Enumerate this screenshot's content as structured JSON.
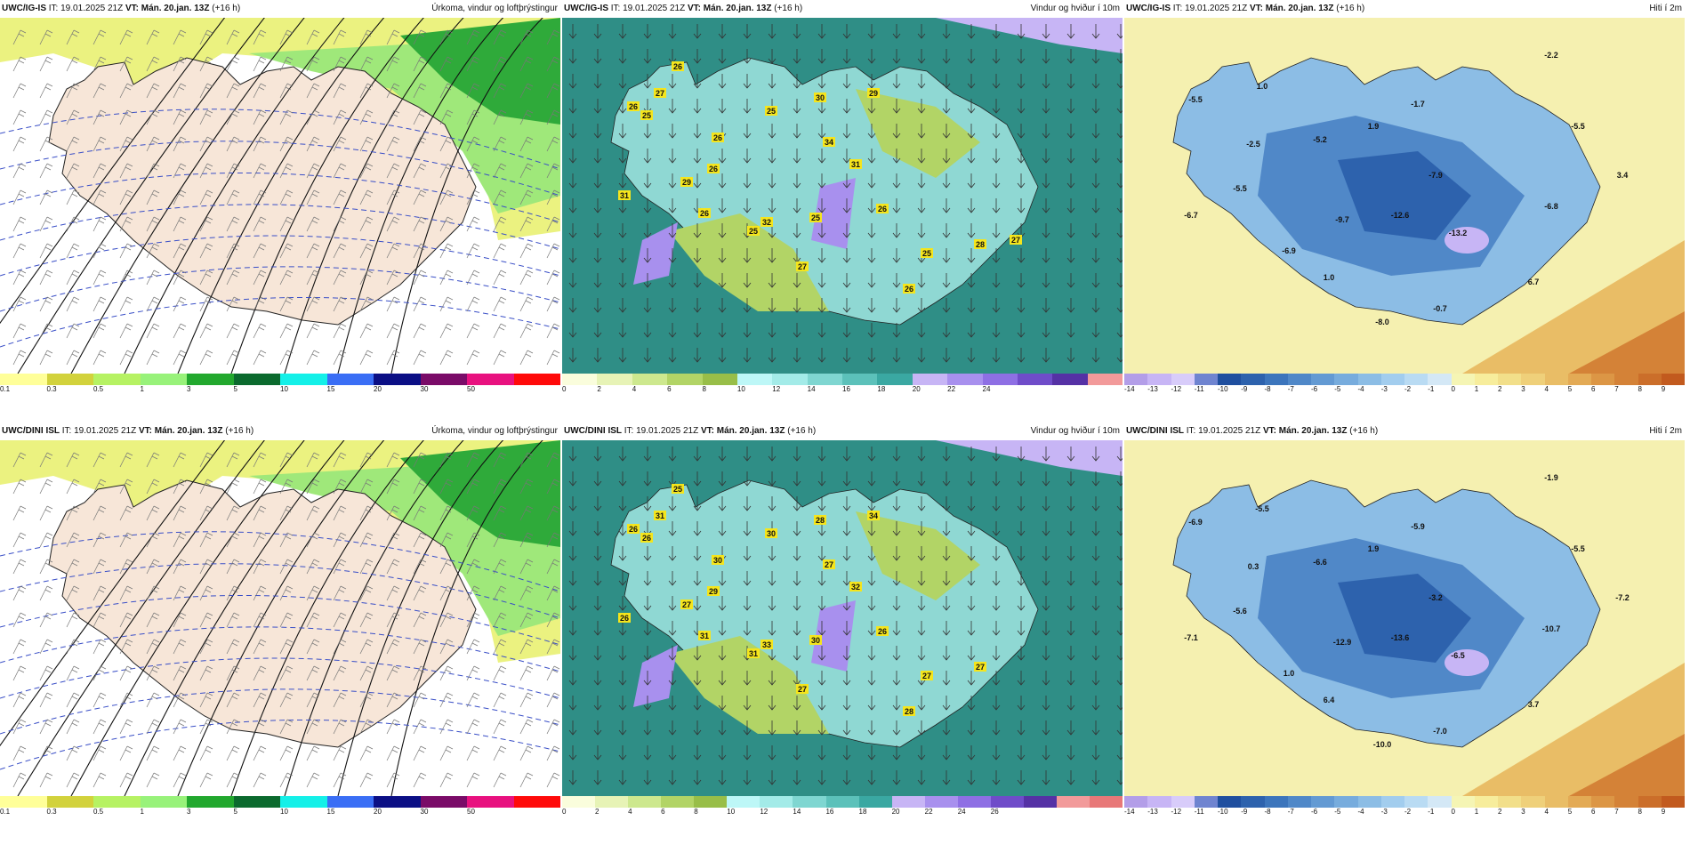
{
  "panels": [
    {
      "id": "r1c1",
      "model": "UWC/IG-IS",
      "it": "IT: 19.01.2025 21Z",
      "vt_label": "VT:",
      "vt": "Mán. 20.jan. 13Z",
      "offset": "(+16 h)",
      "title": "Úrkoma, vindur og loftþrýstingur",
      "type": "precip",
      "scale": {
        "colors": [
          "#ffff99",
          "#d2d23c",
          "#b6f263",
          "#98f27a",
          "#22a82e",
          "#0b6a2e",
          "#14f0e8",
          "#3a6ef5",
          "#0b0f85",
          "#7a0b68",
          "#e8117f",
          "#ff0a0a"
        ],
        "labels": [
          "0.1",
          "0.3",
          "0.5",
          "1",
          "3",
          "5",
          "10",
          "15",
          "20",
          "30",
          "50"
        ]
      },
      "labels": []
    },
    {
      "id": "r1c2",
      "model": "UWC/IG-IS",
      "it": "IT: 19.01.2025 21Z",
      "vt_label": "VT:",
      "vt": "Mán. 20.jan. 13Z",
      "offset": "(+16 h)",
      "title": "Vindur og hviður í 10m",
      "type": "wind",
      "scale": {
        "colors": [
          "#fafddc",
          "#e7f3b6",
          "#cde88e",
          "#b2d466",
          "#98be48",
          "#bdf7f7",
          "#a3ebe8",
          "#7fd6d1",
          "#5cc1ba",
          "#3aa8a2",
          "#c7b5f5",
          "#a890ee",
          "#8e6fe4",
          "#6f4cc9",
          "#5531a5",
          "#f29a9a"
        ],
        "labels": [
          "0",
          "2",
          "4",
          "6",
          "8",
          "10",
          "12",
          "14",
          "16",
          "18",
          "20",
          "22",
          "24"
        ]
      },
      "labels": [
        "26",
        "27",
        "26",
        "25",
        "26",
        "30",
        "29",
        "34",
        "31",
        "26",
        "25",
        "29",
        "31",
        "26",
        "32",
        "25",
        "25",
        "26",
        "27",
        "25",
        "26",
        "28",
        "27"
      ]
    },
    {
      "id": "r1c3",
      "model": "UWC/IG-IS",
      "it": "IT: 19.01.2025 21Z",
      "vt_label": "VT:",
      "vt": "Mán. 20.jan. 13Z",
      "offset": "(+16 h)",
      "title": "Hiti í 2m",
      "type": "temp",
      "scale": {
        "colors": [
          "#b39ee8",
          "#c7b5f5",
          "#d8ccfa",
          "#6f84d0",
          "#1f4f9f",
          "#2d62ad",
          "#3c75bc",
          "#5088c8",
          "#639ad3",
          "#77acdd",
          "#8cbde5",
          "#a2cdee",
          "#b9dbf3",
          "#d4e8f6",
          "#f5f5b4",
          "#f7ed9c",
          "#f2df8a",
          "#efd07a",
          "#e9bd66",
          "#e3aa55",
          "#dc9645",
          "#d48237",
          "#cb6e2a",
          "#c25a1e"
        ],
        "labels": [
          "-14",
          "-13",
          "-12",
          "-11",
          "-10",
          "-9",
          "-8",
          "-7",
          "-6",
          "-5",
          "-4",
          "-3",
          "-2",
          "-1",
          "0",
          "1",
          "2",
          "3",
          "4",
          "5",
          "6",
          "7",
          "8",
          "9"
        ]
      },
      "labels": [
        "-2.2",
        "1.0",
        "-5.5",
        "-1.7",
        "-5.5",
        "1.9",
        "-5.2",
        "-2.5",
        "-7.9",
        "-5.5",
        "3.4",
        "-6.7",
        "-6.8",
        "-9.7",
        "-12.6",
        "-13.2",
        "-6.9",
        "6.7",
        "1.0",
        "-0.7",
        "-8.0"
      ]
    },
    {
      "id": "r2c1",
      "model": "UWC/DINI ISL",
      "it": "IT: 19.01.2025 21Z",
      "vt_label": "VT:",
      "vt": "Mán. 20.jan. 13Z",
      "offset": "(+16 h)",
      "title": "Úrkoma, vindur og loftþrýstingur",
      "type": "precip",
      "scale": {
        "colors": [
          "#ffff99",
          "#d2d23c",
          "#b6f263",
          "#98f27a",
          "#22a82e",
          "#0b6a2e",
          "#14f0e8",
          "#3a6ef5",
          "#0b0f85",
          "#7a0b68",
          "#e8117f",
          "#ff0a0a"
        ],
        "labels": [
          "0.1",
          "0.3",
          "0.5",
          "1",
          "3",
          "5",
          "10",
          "15",
          "20",
          "30",
          "50"
        ]
      },
      "labels": []
    },
    {
      "id": "r2c2",
      "model": "UWC/DINI ISL",
      "it": "IT: 19.01.2025 21Z",
      "vt_label": "VT:",
      "vt": "Mán. 20.jan. 13Z",
      "offset": "(+16 h)",
      "title": "Vindur og hviður í 10m",
      "type": "wind",
      "scale": {
        "colors": [
          "#fafddc",
          "#e7f3b6",
          "#cde88e",
          "#b2d466",
          "#98be48",
          "#bdf7f7",
          "#a3ebe8",
          "#7fd6d1",
          "#5cc1ba",
          "#3aa8a2",
          "#c7b5f5",
          "#a890ee",
          "#8e6fe4",
          "#6f4cc9",
          "#5531a5",
          "#f29a9a",
          "#e87878"
        ],
        "labels": [
          "0",
          "2",
          "4",
          "6",
          "8",
          "10",
          "12",
          "14",
          "16",
          "18",
          "20",
          "22",
          "24",
          "26"
        ]
      },
      "labels": [
        "25",
        "31",
        "26",
        "26",
        "30",
        "28",
        "34",
        "27",
        "32",
        "29",
        "30",
        "27",
        "26",
        "31",
        "33",
        "30",
        "31",
        "26",
        "27",
        "27",
        "28",
        "27"
      ]
    },
    {
      "id": "r2c3",
      "model": "UWC/DINI ISL",
      "it": "IT: 19.01.2025 21Z",
      "vt_label": "VT:",
      "vt": "Mán. 20.jan. 13Z",
      "offset": "(+16 h)",
      "title": "Hiti í 2m",
      "type": "temp",
      "scale": {
        "colors": [
          "#b39ee8",
          "#c7b5f5",
          "#d8ccfa",
          "#6f84d0",
          "#1f4f9f",
          "#2d62ad",
          "#3c75bc",
          "#5088c8",
          "#639ad3",
          "#77acdd",
          "#8cbde5",
          "#a2cdee",
          "#b9dbf3",
          "#d4e8f6",
          "#f5f5b4",
          "#f7ed9c",
          "#f2df8a",
          "#efd07a",
          "#e9bd66",
          "#e3aa55",
          "#dc9645",
          "#d48237",
          "#cb6e2a",
          "#c25a1e"
        ],
        "labels": [
          "-14",
          "-13",
          "-12",
          "-11",
          "-10",
          "-9",
          "-8",
          "-7",
          "-6",
          "-5",
          "-4",
          "-3",
          "-2",
          "-1",
          "0",
          "1",
          "2",
          "3",
          "4",
          "5",
          "6",
          "7",
          "8",
          "9"
        ]
      },
      "labels": [
        "-1.9",
        "-5.5",
        "-6.9",
        "-5.9",
        "-5.5",
        "1.9",
        "-6.6",
        "0.3",
        "-3.2",
        "-5.6",
        "-7.2",
        "-7.1",
        "-10.7",
        "-12.9",
        "-13.6",
        "-6.5",
        "1.0",
        "3.7",
        "6.4",
        "-7.0",
        "-10.0"
      ]
    }
  ]
}
